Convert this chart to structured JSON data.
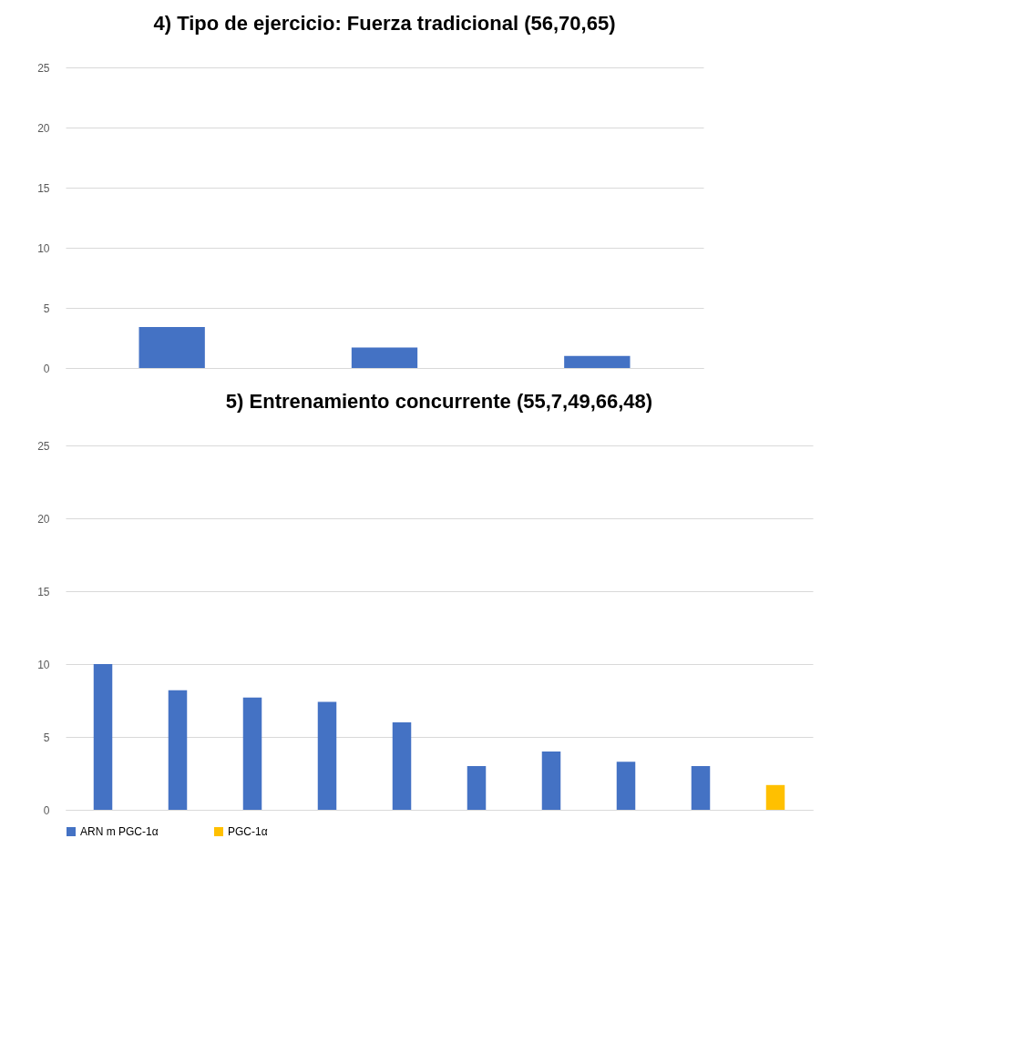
{
  "chart_data": [
    {
      "type": "bar",
      "title": "4) Tipo de ejercicio: Fuerza tradicional (56,70,65)",
      "categories": [
        null,
        null,
        null
      ],
      "series": [
        {
          "color": "#4472c4",
          "values": [
            3.4,
            1.7,
            1.0
          ]
        }
      ],
      "ylim": [
        0,
        25
      ],
      "yticks": [
        0,
        5,
        10,
        15,
        20,
        25
      ],
      "grid": "y",
      "tick_labels": "y"
    },
    {
      "type": "bar",
      "title": "5) Entrenamiento concurrente (55,7,49,66,48)",
      "categories": [
        null,
        null,
        null,
        null,
        null,
        null,
        null,
        null,
        null,
        null
      ],
      "series": [
        {
          "name": "ARN m PGC-1α",
          "color": "#4472c4",
          "values": [
            10,
            8.2,
            7.7,
            7.4,
            6.0,
            3.0,
            4.0,
            3.3,
            3.0,
            null
          ]
        },
        {
          "name": "PGC-1α",
          "color": "#ffc000",
          "values": [
            null,
            null,
            null,
            null,
            null,
            null,
            null,
            null,
            null,
            1.7
          ]
        }
      ],
      "ylim": [
        0,
        25
      ],
      "yticks": [
        0,
        5,
        10,
        15,
        20,
        25
      ],
      "grid": "y",
      "legend": "bottom",
      "tick_labels": "y"
    }
  ]
}
